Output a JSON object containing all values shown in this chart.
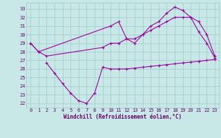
{
  "line1_x": [
    0,
    1,
    10,
    11,
    12,
    13,
    14,
    15,
    16,
    17,
    18,
    19,
    20,
    21,
    22,
    23
  ],
  "line1_y": [
    29,
    28,
    31,
    31.5,
    29.5,
    29,
    30,
    31,
    31.5,
    32.5,
    33.2,
    32.8,
    32,
    30.3,
    29,
    27.3
  ],
  "line2_x": [
    0,
    1,
    2,
    9,
    10,
    11,
    12,
    13,
    14,
    15,
    16,
    17,
    18,
    19,
    20,
    21,
    22,
    23
  ],
  "line2_y": [
    29,
    28,
    27.5,
    28.5,
    29,
    29,
    29.5,
    29.5,
    30,
    30.5,
    31,
    31.5,
    32,
    32,
    32,
    31.5,
    30,
    27.5
  ],
  "line3_x": [
    2,
    3,
    4,
    5,
    6,
    7,
    8,
    9,
    10,
    11,
    12,
    13,
    14,
    15,
    16,
    17,
    18,
    19,
    20,
    21,
    22,
    23
  ],
  "line3_y": [
    26.7,
    25.5,
    24.3,
    23.2,
    22.3,
    22.0,
    23.2,
    26.2,
    26.0,
    26.0,
    26.0,
    26.1,
    26.2,
    26.3,
    26.4,
    26.5,
    26.6,
    26.7,
    26.8,
    26.9,
    27.0,
    27.1
  ],
  "line_color": "#990099",
  "bg_color": "#c8e8e8",
  "grid_color": "#a0c8c8",
  "xlabel": "Windchill (Refroidissement éolien,°C)",
  "xlim": [
    -0.5,
    23.5
  ],
  "ylim": [
    21.5,
    33.7
  ],
  "yticks": [
    22,
    23,
    24,
    25,
    26,
    27,
    28,
    29,
    30,
    31,
    32,
    33
  ],
  "xticks": [
    0,
    1,
    2,
    3,
    4,
    5,
    6,
    7,
    8,
    9,
    10,
    11,
    12,
    13,
    14,
    15,
    16,
    17,
    18,
    19,
    20,
    21,
    22,
    23
  ],
  "marker": "+",
  "markersize": 3,
  "linewidth": 0.8,
  "tick_fontsize": 5,
  "xlabel_fontsize": 5.5,
  "label_color": "#660066"
}
